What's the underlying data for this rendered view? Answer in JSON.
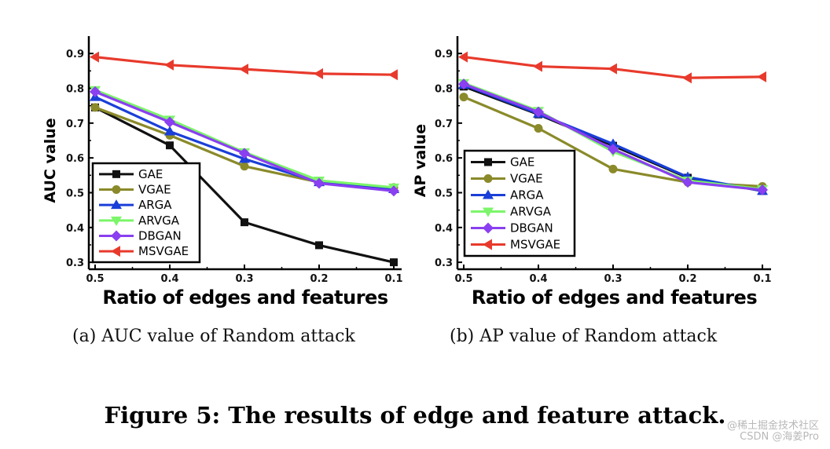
{
  "figure": {
    "caption": "Figure 5: The results of edge and feature attack.",
    "watermark_line1": "@稀土掘金技术社区",
    "watermark_line2": "CSDN @海姜Pro"
  },
  "chart_data": [
    {
      "type": "line",
      "subcaption": "(a)  AUC value of Random attack",
      "xlabel": "Ratio of edges and features",
      "ylabel": "AUC value",
      "categories": [
        "0.5",
        "0.4",
        "0.3",
        "0.2",
        "0.1"
      ],
      "ylim": [
        0.28,
        0.95
      ],
      "yticks": [
        0.3,
        0.4,
        0.5,
        0.6,
        0.7,
        0.8,
        0.9
      ],
      "legend_position": "bottom-left",
      "series": [
        {
          "name": "GAE",
          "color": "#111111",
          "marker": "square",
          "values": [
            0.745,
            0.636,
            0.415,
            0.349,
            0.3
          ]
        },
        {
          "name": "VGAE",
          "color": "#8a8a2a",
          "marker": "circle",
          "values": [
            0.745,
            0.665,
            0.576,
            0.53,
            0.515
          ]
        },
        {
          "name": "ARGA",
          "color": "#1a3fd8",
          "marker": "triangle-up",
          "values": [
            0.775,
            0.676,
            0.597,
            0.53,
            0.51
          ]
        },
        {
          "name": "ARVGA",
          "color": "#7cf56a",
          "marker": "triangle-down",
          "values": [
            0.795,
            0.71,
            0.616,
            0.535,
            0.515
          ]
        },
        {
          "name": "DBGAN",
          "color": "#8a3ff0",
          "marker": "diamond",
          "values": [
            0.79,
            0.703,
            0.613,
            0.527,
            0.505
          ]
        },
        {
          "name": "MSVGAE",
          "color": "#e83a2c",
          "marker": "triangle-left",
          "values": [
            0.89,
            0.867,
            0.855,
            0.842,
            0.839
          ]
        }
      ]
    },
    {
      "type": "line",
      "subcaption": "(b)  AP value of Random attack",
      "xlabel": "Ratio of edges and features",
      "ylabel": "AP value",
      "categories": [
        "0.5",
        "0.4",
        "0.3",
        "0.2",
        "0.1"
      ],
      "ylim": [
        0.28,
        0.95
      ],
      "yticks": [
        0.3,
        0.4,
        0.5,
        0.6,
        0.7,
        0.8,
        0.9
      ],
      "legend_position": "bottom-left",
      "series": [
        {
          "name": "GAE",
          "color": "#111111",
          "marker": "square",
          "values": [
            0.805,
            0.725,
            0.635,
            0.543,
            0.505
          ]
        },
        {
          "name": "VGAE",
          "color": "#8a8a2a",
          "marker": "circle",
          "values": [
            0.775,
            0.685,
            0.568,
            0.53,
            0.518
          ]
        },
        {
          "name": "ARGA",
          "color": "#1a3fd8",
          "marker": "triangle-up",
          "values": [
            0.81,
            0.727,
            0.64,
            0.545,
            0.505
          ]
        },
        {
          "name": "ARVGA",
          "color": "#7cf56a",
          "marker": "triangle-down",
          "values": [
            0.815,
            0.735,
            0.618,
            0.535,
            0.51
          ]
        },
        {
          "name": "DBGAN",
          "color": "#8a3ff0",
          "marker": "diamond",
          "values": [
            0.812,
            0.732,
            0.625,
            0.53,
            0.508
          ]
        },
        {
          "name": "MSVGAE",
          "color": "#e83a2c",
          "marker": "triangle-left",
          "values": [
            0.89,
            0.863,
            0.856,
            0.83,
            0.833
          ]
        }
      ]
    }
  ]
}
